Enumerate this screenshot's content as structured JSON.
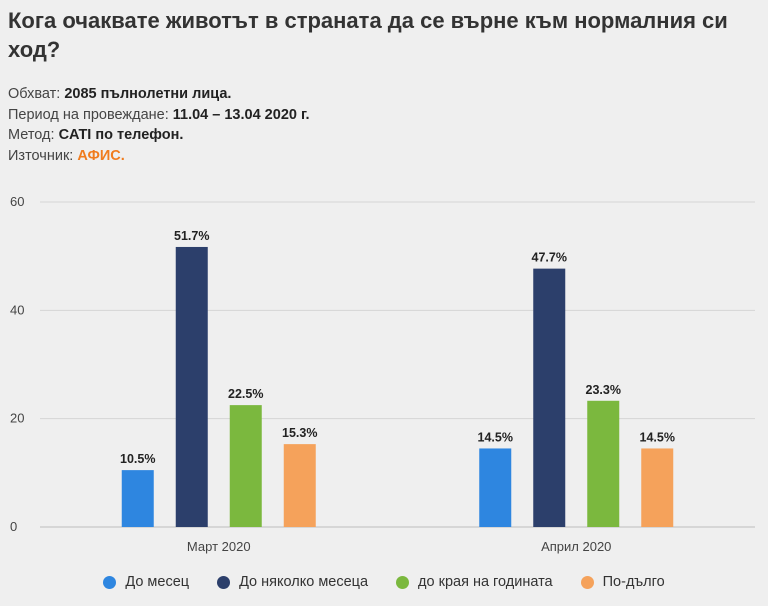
{
  "title": "Кога очаквате животът в страната да се върне към нормалния си ход?",
  "meta": [
    {
      "label": "Обхват:",
      "value": "2085 пълнолетни лица.",
      "highlight": false
    },
    {
      "label": "Период на провеждане:",
      "value": "11.04 – 13.04 2020 г.",
      "highlight": false
    },
    {
      "label": "Метод:",
      "value": "CATI по телефон.",
      "highlight": false
    },
    {
      "label": "Източник:",
      "value": "АФИС.",
      "highlight": true
    }
  ],
  "colors": {
    "source": "#f07c1e"
  },
  "chart_data": {
    "type": "bar",
    "categories": [
      "Март 2020",
      "Април 2020"
    ],
    "series": [
      {
        "name": "До месец",
        "color": "#2e86e0",
        "values": [
          10.5,
          14.5
        ],
        "labels": [
          "10.5%",
          "14.5%"
        ]
      },
      {
        "name": "До няколко месеца",
        "color": "#2c3f6b",
        "values": [
          51.7,
          47.7
        ],
        "labels": [
          "51.7%",
          "47.7%"
        ]
      },
      {
        "name": "до края на годината",
        "color": "#7bb83e",
        "values": [
          22.5,
          23.3
        ],
        "labels": [
          "22.5%",
          "23.3%"
        ]
      },
      {
        "name": "По-дълго",
        "color": "#f5a25b",
        "values": [
          15.3,
          14.5
        ],
        "labels": [
          "15.3%",
          "14.5%"
        ]
      }
    ],
    "ylim": [
      0,
      60
    ],
    "yticks": [
      0,
      20,
      40,
      60
    ],
    "grid": true,
    "legend": "bottom"
  }
}
